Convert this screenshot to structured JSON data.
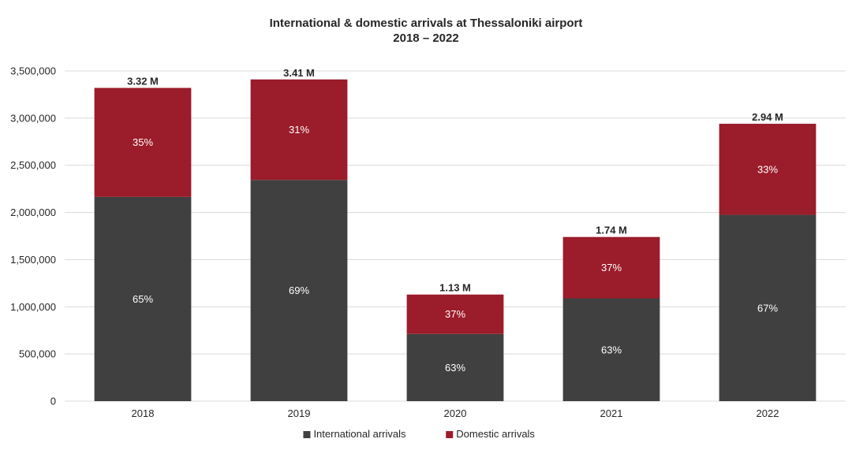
{
  "chart_data": {
    "type": "bar",
    "stacked": true,
    "title": "International & domestic arrivals at Thessaloniki airport",
    "subtitle": "2018 – 2022",
    "categories": [
      "2018",
      "2019",
      "2020",
      "2021",
      "2022"
    ],
    "series": [
      {
        "name": "International arrivals",
        "color": "#404040",
        "values": [
          2165000,
          2345000,
          712000,
          1090000,
          1975000
        ],
        "labels": [
          "65%",
          "69%",
          "63%",
          "63%",
          "67%"
        ]
      },
      {
        "name": "Domestic arrivals",
        "color": "#9b1c2a",
        "values": [
          1155000,
          1065000,
          418000,
          650000,
          965000
        ],
        "labels": [
          "35%",
          "31%",
          "37%",
          "37%",
          "33%"
        ]
      }
    ],
    "totals": [
      3320000,
      3410000,
      1130000,
      1740000,
      2940000
    ],
    "total_labels": [
      "3.32 M",
      "3.41 M",
      "1.13 M",
      "1.74 M",
      "2.94 M"
    ],
    "ylim": [
      0,
      3500000
    ],
    "yticks": [
      0,
      500000,
      1000000,
      1500000,
      2000000,
      2500000,
      3000000,
      3500000
    ],
    "ytick_labels": [
      "0",
      "500,000",
      "1,000,000",
      "1,500,000",
      "2,000,000",
      "2,500,000",
      "3,000,000",
      "3,500,000"
    ],
    "grid": true,
    "legend_position": "bottom"
  }
}
